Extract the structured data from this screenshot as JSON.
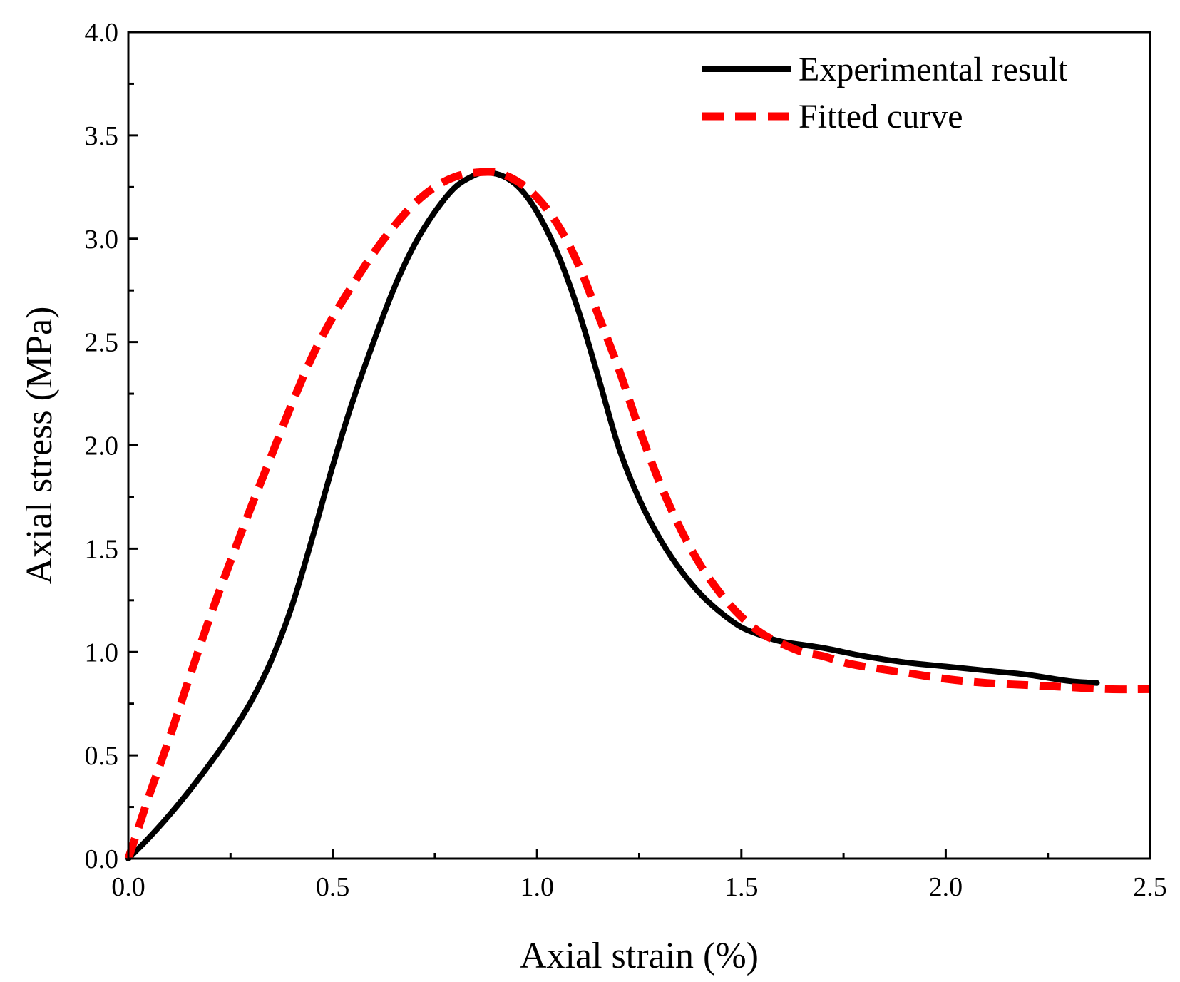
{
  "chart_data": {
    "type": "line",
    "title": "",
    "xlabel": "Axial strain (%)",
    "ylabel": "Axial stress (MPa)",
    "xlim": [
      0.0,
      2.5
    ],
    "ylim": [
      0.0,
      4.0
    ],
    "x_ticks": [
      "0.0",
      "0.5",
      "1.0",
      "1.5",
      "2.0",
      "2.5"
    ],
    "y_ticks": [
      "0.0",
      "0.5",
      "1.0",
      "1.5",
      "2.0",
      "2.5",
      "3.0",
      "3.5",
      "4.0"
    ],
    "x_tick_values": [
      0.0,
      0.5,
      1.0,
      1.5,
      2.0,
      2.5
    ],
    "y_tick_values": [
      0.0,
      0.5,
      1.0,
      1.5,
      2.0,
      2.5,
      3.0,
      3.5,
      4.0
    ],
    "x_minor_step": 0.25,
    "y_minor_step": 0.25,
    "grid": false,
    "legend_position": "top-right",
    "series": [
      {
        "name": "Experimental result",
        "color": "#000000",
        "style": "solid",
        "x": [
          0.0,
          0.05,
          0.1,
          0.15,
          0.2,
          0.25,
          0.3,
          0.35,
          0.4,
          0.45,
          0.5,
          0.55,
          0.6,
          0.65,
          0.7,
          0.75,
          0.8,
          0.85,
          0.88,
          0.92,
          0.96,
          1.0,
          1.05,
          1.1,
          1.15,
          1.2,
          1.25,
          1.3,
          1.35,
          1.4,
          1.45,
          1.5,
          1.55,
          1.6,
          1.7,
          1.8,
          1.9,
          2.0,
          2.1,
          2.2,
          2.3,
          2.37
        ],
        "y": [
          0.0,
          0.1,
          0.21,
          0.33,
          0.46,
          0.6,
          0.76,
          0.96,
          1.22,
          1.55,
          1.9,
          2.22,
          2.5,
          2.76,
          2.97,
          3.13,
          3.25,
          3.31,
          3.32,
          3.3,
          3.24,
          3.13,
          2.93,
          2.66,
          2.33,
          1.99,
          1.74,
          1.55,
          1.4,
          1.28,
          1.19,
          1.12,
          1.08,
          1.05,
          1.02,
          0.98,
          0.95,
          0.93,
          0.91,
          0.89,
          0.86,
          0.85
        ]
      },
      {
        "name": "Fitted curve",
        "color": "#ff0000",
        "style": "dashed",
        "x": [
          0.0,
          0.05,
          0.1,
          0.15,
          0.2,
          0.25,
          0.3,
          0.35,
          0.4,
          0.45,
          0.5,
          0.55,
          0.6,
          0.65,
          0.7,
          0.75,
          0.8,
          0.85,
          0.9,
          0.95,
          1.0,
          1.05,
          1.1,
          1.15,
          1.2,
          1.25,
          1.3,
          1.35,
          1.4,
          1.45,
          1.5,
          1.55,
          1.6,
          1.65,
          1.7,
          1.75,
          1.8,
          1.9,
          2.0,
          2.1,
          2.2,
          2.3,
          2.4,
          2.5
        ],
        "y": [
          0.0,
          0.3,
          0.58,
          0.88,
          1.17,
          1.44,
          1.7,
          1.95,
          2.2,
          2.43,
          2.62,
          2.78,
          2.93,
          3.06,
          3.17,
          3.25,
          3.3,
          3.32,
          3.32,
          3.28,
          3.2,
          3.07,
          2.88,
          2.63,
          2.37,
          2.08,
          1.82,
          1.6,
          1.42,
          1.28,
          1.17,
          1.09,
          1.04,
          1.0,
          0.98,
          0.95,
          0.93,
          0.9,
          0.87,
          0.85,
          0.84,
          0.83,
          0.82,
          0.82
        ]
      }
    ]
  }
}
